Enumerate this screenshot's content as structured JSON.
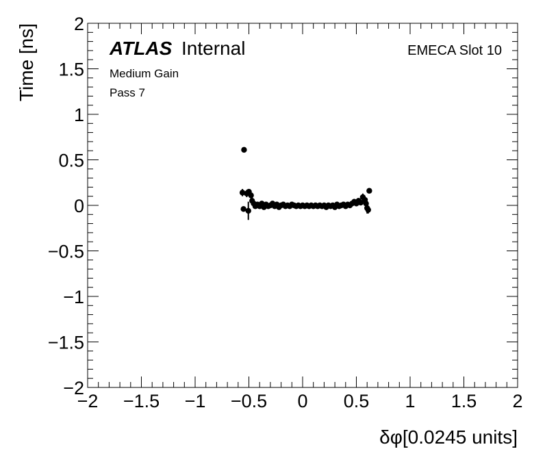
{
  "chart_data": {
    "type": "scatter",
    "title": "",
    "xlabel": "δφ[0.0245 units]",
    "ylabel": "Time [ns]",
    "xlim": [
      -2,
      2
    ],
    "ylim": [
      -2,
      2
    ],
    "x_ticks": [
      "−2",
      "−1.5",
      "−1",
      "−0.5",
      "0",
      "0.5",
      "1",
      "1.5",
      "2"
    ],
    "y_ticks": [
      "−2",
      "−1.5",
      "−1",
      "−0.5",
      "0",
      "0.5",
      "1",
      "1.5",
      "2"
    ],
    "grid": false,
    "annotations": {
      "experiment": "ATLAS",
      "status": "Internal",
      "gain": "Medium Gain",
      "pass": "Pass 7",
      "slot": "EMECA Slot 10"
    },
    "marker_color": "#000000",
    "series": [
      {
        "points": [
          {
            "x": -0.56,
            "y": 0.14,
            "err": 0.04
          },
          {
            "x": -0.55,
            "y": -0.04,
            "err": 0.03
          },
          {
            "x": -0.545,
            "y": 0.61,
            "err": 0.0
          },
          {
            "x": -0.52,
            "y": 0.13,
            "err": 0.04
          },
          {
            "x": -0.5,
            "y": 0.15,
            "err": 0.03
          },
          {
            "x": -0.505,
            "y": -0.06,
            "err": 0.1
          },
          {
            "x": -0.48,
            "y": 0.11,
            "err": 0.05
          },
          {
            "x": -0.47,
            "y": 0.05,
            "err": 0.04
          },
          {
            "x": -0.455,
            "y": 0.02,
            "err": 0.03
          },
          {
            "x": -0.44,
            "y": -0.01,
            "err": 0.02
          },
          {
            "x": -0.42,
            "y": 0.01,
            "err": 0.02
          },
          {
            "x": -0.4,
            "y": -0.01,
            "err": 0.02
          },
          {
            "x": -0.38,
            "y": 0.02,
            "err": 0.02
          },
          {
            "x": -0.36,
            "y": -0.02,
            "err": 0.02
          },
          {
            "x": -0.34,
            "y": 0.01,
            "err": 0.02
          },
          {
            "x": -0.32,
            "y": -0.01,
            "err": 0.02
          },
          {
            "x": -0.3,
            "y": 0.0,
            "err": 0.02
          },
          {
            "x": -0.28,
            "y": 0.02,
            "err": 0.02
          },
          {
            "x": -0.26,
            "y": -0.01,
            "err": 0.02
          },
          {
            "x": -0.24,
            "y": 0.01,
            "err": 0.02
          },
          {
            "x": -0.22,
            "y": -0.02,
            "err": 0.02
          },
          {
            "x": -0.2,
            "y": 0.0,
            "err": 0.02
          },
          {
            "x": -0.18,
            "y": 0.01,
            "err": 0.02
          },
          {
            "x": -0.16,
            "y": -0.01,
            "err": 0.02
          },
          {
            "x": -0.14,
            "y": 0.0,
            "err": 0.02
          },
          {
            "x": -0.12,
            "y": -0.01,
            "err": 0.02
          },
          {
            "x": -0.1,
            "y": 0.01,
            "err": 0.02
          },
          {
            "x": -0.08,
            "y": 0.0,
            "err": 0.02
          },
          {
            "x": -0.06,
            "y": -0.01,
            "err": 0.02
          },
          {
            "x": -0.04,
            "y": 0.0,
            "err": 0.02
          },
          {
            "x": -0.02,
            "y": -0.01,
            "err": 0.02
          },
          {
            "x": 0.0,
            "y": 0.0,
            "err": 0.02
          },
          {
            "x": 0.02,
            "y": -0.01,
            "err": 0.02
          },
          {
            "x": 0.04,
            "y": 0.0,
            "err": 0.02
          },
          {
            "x": 0.06,
            "y": -0.01,
            "err": 0.02
          },
          {
            "x": 0.08,
            "y": 0.0,
            "err": 0.02
          },
          {
            "x": 0.1,
            "y": -0.01,
            "err": 0.02
          },
          {
            "x": 0.12,
            "y": 0.0,
            "err": 0.02
          },
          {
            "x": 0.14,
            "y": -0.01,
            "err": 0.02
          },
          {
            "x": 0.16,
            "y": 0.0,
            "err": 0.02
          },
          {
            "x": 0.18,
            "y": -0.01,
            "err": 0.02
          },
          {
            "x": 0.2,
            "y": 0.0,
            "err": 0.02
          },
          {
            "x": 0.22,
            "y": -0.02,
            "err": 0.02
          },
          {
            "x": 0.24,
            "y": 0.0,
            "err": 0.02
          },
          {
            "x": 0.26,
            "y": -0.01,
            "err": 0.02
          },
          {
            "x": 0.28,
            "y": 0.0,
            "err": 0.02
          },
          {
            "x": 0.3,
            "y": -0.02,
            "err": 0.02
          },
          {
            "x": 0.32,
            "y": 0.01,
            "err": 0.02
          },
          {
            "x": 0.34,
            "y": -0.01,
            "err": 0.02
          },
          {
            "x": 0.36,
            "y": 0.0,
            "err": 0.02
          },
          {
            "x": 0.38,
            "y": 0.01,
            "err": 0.02
          },
          {
            "x": 0.4,
            "y": -0.01,
            "err": 0.02
          },
          {
            "x": 0.42,
            "y": 0.01,
            "err": 0.02
          },
          {
            "x": 0.44,
            "y": 0.0,
            "err": 0.02
          },
          {
            "x": 0.46,
            "y": 0.02,
            "err": 0.02
          },
          {
            "x": 0.48,
            "y": 0.04,
            "err": 0.03
          },
          {
            "x": 0.5,
            "y": 0.02,
            "err": 0.03
          },
          {
            "x": 0.52,
            "y": 0.05,
            "err": 0.03
          },
          {
            "x": 0.54,
            "y": 0.03,
            "err": 0.03
          },
          {
            "x": 0.56,
            "y": 0.09,
            "err": 0.04
          },
          {
            "x": 0.58,
            "y": 0.06,
            "err": 0.04
          },
          {
            "x": 0.59,
            "y": 0.02,
            "err": 0.04
          },
          {
            "x": 0.6,
            "y": -0.03,
            "err": 0.06
          },
          {
            "x": 0.61,
            "y": -0.05,
            "err": 0.04
          },
          {
            "x": 0.62,
            "y": 0.16,
            "err": 0.0
          }
        ]
      }
    ]
  }
}
